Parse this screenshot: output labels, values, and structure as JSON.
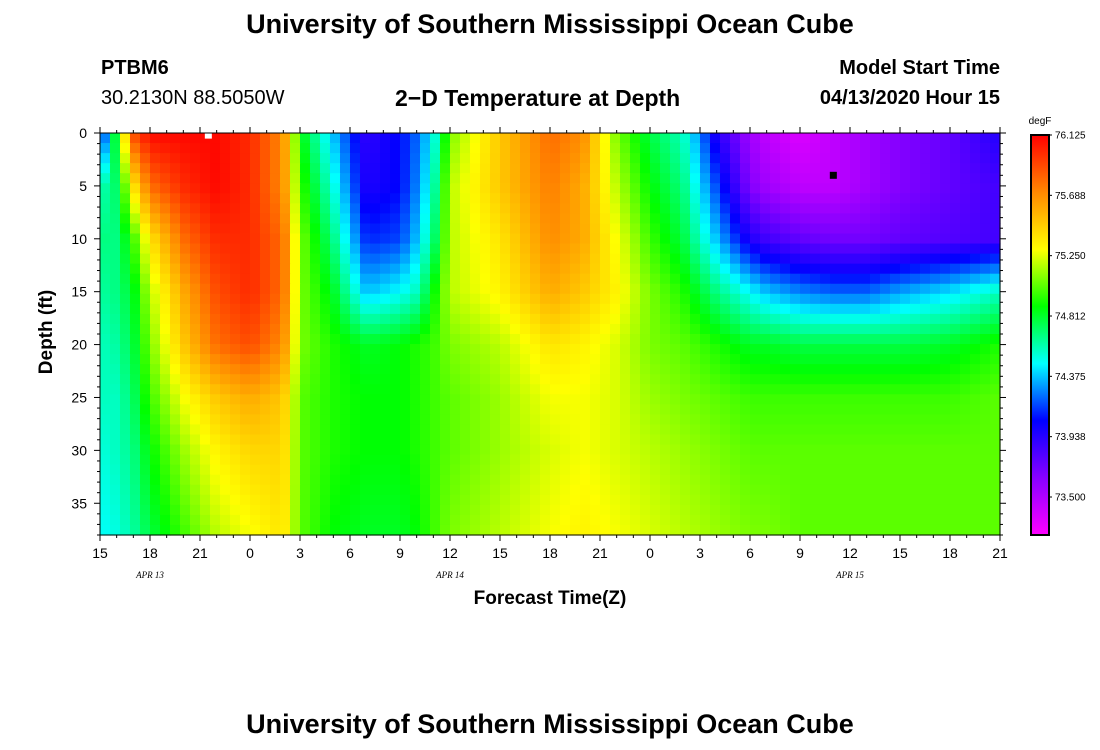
{
  "header": {
    "title": "University of Southern Mississippi Ocean Cube",
    "station": "PTBM6",
    "coords": "30.2130N 88.5050W",
    "subtitle": "2−D Temperature at Depth",
    "model_start_label": "Model Start Time",
    "model_start_value": "04/13/2020 Hour 15"
  },
  "footer": {
    "title": "University of Southern Mississippi Ocean Cube"
  },
  "colorbar": {
    "unit": "degF",
    "tick_labels": [
      "76.125",
      "75.688",
      "75.250",
      "74.812",
      "74.375",
      "73.938",
      "73.500"
    ],
    "min": 73.28,
    "max": 76.125,
    "colors": [
      "#ff00ff",
      "#8800ff",
      "#0000ff",
      "#00ffff",
      "#00ff00",
      "#ffff00",
      "#ff8800",
      "#ff0000"
    ]
  },
  "chart_data": {
    "type": "heatmap",
    "title": "2−D Temperature at Depth",
    "xlabel": "Forecast Time(Z)",
    "ylabel": "Depth (ft)",
    "x_unit": "hours from 04/13/2020 Hour 15",
    "x_range": [
      0,
      54
    ],
    "x_tick_labels": [
      "15",
      "18",
      "21",
      "0",
      "3",
      "6",
      "9",
      "12",
      "15",
      "18",
      "21",
      "0",
      "3",
      "6",
      "9",
      "12",
      "15",
      "18",
      "21"
    ],
    "x_date_labels": [
      {
        "label": "APR 13",
        "x": 3
      },
      {
        "label": "APR 14",
        "x": 21
      },
      {
        "label": "APR 15",
        "x": 45
      }
    ],
    "y_range": [
      0,
      38
    ],
    "y_tick_labels": [
      "0",
      "5",
      "10",
      "15",
      "20",
      "25",
      "30",
      "35"
    ],
    "y_ticks": [
      0,
      5,
      10,
      15,
      20,
      25,
      30,
      35
    ],
    "depths": [
      0,
      5,
      10,
      15,
      20,
      25,
      30,
      38
    ],
    "times": [
      0,
      1,
      2,
      3,
      5,
      7,
      9,
      11,
      12,
      14,
      16,
      18,
      19,
      20,
      21,
      24,
      27,
      29,
      31,
      33,
      35,
      37,
      39,
      40,
      42,
      44,
      46,
      48,
      51,
      54
    ],
    "values": [
      [
        74.0,
        74.9,
        75.9,
        76.1,
        76.1,
        76.1,
        76.0,
        75.7,
        74.9,
        74.4,
        73.95,
        74.1,
        74.25,
        74.5,
        75.1,
        75.5,
        75.8,
        75.7,
        75.1,
        74.8,
        74.6,
        74.0,
        73.6,
        73.5,
        73.4,
        73.5,
        73.6,
        73.7,
        73.8,
        74.0
      ],
      [
        74.6,
        74.75,
        75.4,
        75.8,
        76.0,
        76.1,
        76.0,
        75.7,
        75.0,
        74.55,
        74.0,
        74.1,
        74.3,
        74.6,
        75.2,
        75.5,
        75.75,
        75.6,
        75.2,
        74.9,
        74.7,
        74.2,
        73.7,
        73.6,
        73.5,
        73.5,
        73.6,
        73.7,
        73.8,
        73.9
      ],
      [
        74.7,
        74.7,
        75.0,
        75.4,
        75.8,
        76.0,
        76.0,
        75.8,
        75.1,
        74.7,
        74.15,
        74.2,
        74.4,
        74.7,
        75.2,
        75.4,
        75.7,
        75.6,
        75.3,
        75.0,
        74.8,
        74.4,
        74.0,
        73.9,
        73.8,
        73.75,
        73.75,
        73.8,
        73.85,
        73.9
      ],
      [
        74.65,
        74.7,
        74.85,
        75.2,
        75.6,
        75.9,
        76.0,
        75.8,
        75.1,
        74.85,
        74.4,
        74.5,
        74.6,
        74.9,
        75.2,
        75.35,
        75.6,
        75.5,
        75.35,
        75.1,
        74.95,
        74.7,
        74.5,
        74.4,
        74.3,
        74.25,
        74.25,
        74.35,
        74.45,
        74.6
      ],
      [
        74.6,
        74.65,
        74.8,
        75.1,
        75.5,
        75.8,
        75.9,
        75.7,
        75.1,
        74.95,
        74.85,
        74.9,
        74.95,
        75.0,
        75.1,
        75.2,
        75.4,
        75.35,
        75.25,
        75.1,
        75.05,
        74.95,
        74.85,
        74.85,
        74.8,
        74.8,
        74.8,
        74.8,
        74.85,
        74.95
      ],
      [
        74.6,
        74.6,
        74.75,
        75.0,
        75.3,
        75.5,
        75.6,
        75.5,
        75.05,
        74.95,
        74.9,
        74.9,
        74.95,
        75.0,
        75.05,
        75.15,
        75.3,
        75.3,
        75.25,
        75.15,
        75.1,
        75.05,
        75.0,
        75.0,
        75.0,
        75.0,
        75.0,
        75.0,
        75.0,
        75.05
      ],
      [
        74.55,
        74.6,
        74.7,
        74.9,
        75.15,
        75.35,
        75.45,
        75.45,
        75.05,
        74.95,
        74.9,
        74.9,
        74.95,
        75.0,
        75.05,
        75.15,
        75.25,
        75.3,
        75.25,
        75.2,
        75.15,
        75.1,
        75.05,
        75.05,
        75.05,
        75.05,
        75.05,
        75.05,
        75.05,
        75.05
      ],
      [
        74.5,
        74.55,
        74.65,
        74.8,
        75.0,
        75.2,
        75.3,
        75.4,
        75.05,
        74.9,
        74.85,
        74.85,
        74.9,
        75.0,
        75.1,
        75.2,
        75.3,
        75.35,
        75.3,
        75.25,
        75.2,
        75.15,
        75.1,
        75.1,
        75.05,
        75.05,
        75.05,
        75.05,
        75.05,
        75.05
      ]
    ],
    "markers": [
      {
        "name": "max",
        "x": 6.5,
        "depth": 0.2,
        "color": "#ffffff"
      },
      {
        "name": "min",
        "x": 44,
        "depth": 4,
        "color": "#000000"
      }
    ],
    "grid": false
  }
}
